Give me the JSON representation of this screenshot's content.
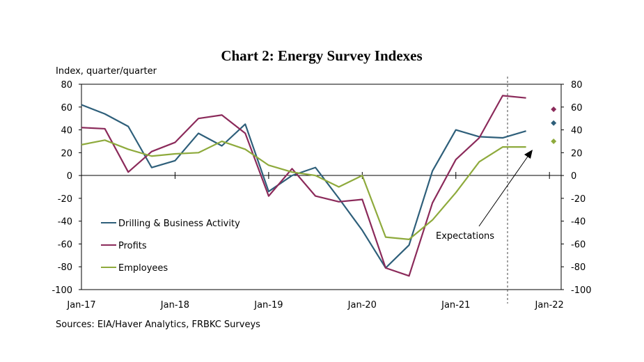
{
  "chart_data": {
    "type": "line",
    "title": "Chart 2: Energy Survey Indexes",
    "ylabel": "Index, quarter/quarter",
    "ylim": [
      -100,
      80
    ],
    "yticks": [
      80,
      60,
      40,
      20,
      0,
      -20,
      -40,
      -60,
      -80,
      -100
    ],
    "xlim": [
      0,
      20.5
    ],
    "xticks": [
      {
        "label": "Jan-17",
        "x": 0
      },
      {
        "label": "Jan-18",
        "x": 4
      },
      {
        "label": "Jan-19",
        "x": 8
      },
      {
        "label": "Jan-20",
        "x": 12
      },
      {
        "label": "Jan-21",
        "x": 16
      },
      {
        "label": "Jan-22",
        "x": 20
      }
    ],
    "series": [
      {
        "name": "Drilling & Business Activity",
        "color": "#2e5f7a",
        "values": [
          62,
          54,
          43,
          7,
          13,
          37,
          26,
          45,
          -14,
          0,
          7,
          -20,
          -48,
          -81,
          -61,
          4,
          40,
          34,
          33,
          39
        ],
        "expectation": 46
      },
      {
        "name": "Profits",
        "color": "#8b2a5a",
        "values": [
          42,
          41,
          3,
          21,
          29,
          50,
          53,
          37,
          -18,
          6,
          -18,
          -23,
          -21,
          -81,
          -88,
          -24,
          14,
          33,
          70,
          68
        ],
        "expectation": 58
      },
      {
        "name": "Employees",
        "color": "#8eaa3c",
        "values": [
          27,
          31,
          23,
          17,
          19,
          20,
          30,
          23,
          9,
          3,
          0,
          -10,
          0,
          -54,
          -56,
          -39,
          -15,
          12,
          25,
          25
        ],
        "expectation": 30
      }
    ],
    "annotation": "Expectations",
    "source": "Sources: EIA/Haver Analytics, FRBKC Surveys"
  }
}
